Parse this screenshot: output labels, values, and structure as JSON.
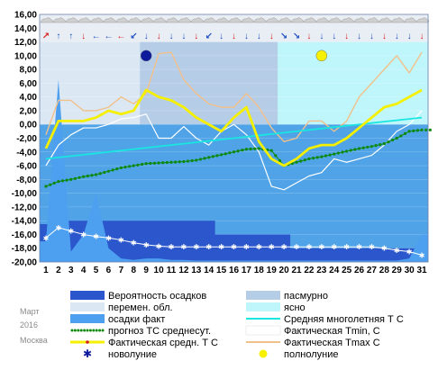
{
  "meta": {
    "month": "Март",
    "year": "2016",
    "city": "Москва"
  },
  "colors": {
    "background": "#ffffff",
    "plot_bg": "#4fa3e6",
    "cloudy": "#b6cde8",
    "partly": "#dbe8f4",
    "clear": "#bff6fb",
    "precip_prob": "#2c57cc",
    "precip_fact": "#4da0f0",
    "norm": "#19e6e0",
    "forecast": "#0d8a0d",
    "fact_mean": "#f5ef00",
    "tmin": "#ffffff",
    "tmax": "#f2c08a",
    "new_moon": "#0d1a9c",
    "full_moon": "#f7f000"
  },
  "chart_data": {
    "type": "line",
    "x": [
      1,
      2,
      3,
      4,
      5,
      6,
      7,
      8,
      9,
      10,
      11,
      12,
      13,
      14,
      15,
      16,
      17,
      18,
      19,
      20,
      21,
      22,
      23,
      24,
      25,
      26,
      27,
      28,
      29,
      30,
      31
    ],
    "ylim": [
      -20,
      16
    ],
    "yticks": [
      "16,00",
      "14,00",
      "12,00",
      "10,00",
      "8,00",
      "6,00",
      "4,00",
      "2,00",
      "0,00",
      "-2,00",
      "-4,00",
      "-6,00",
      "-8,00",
      "-10,00",
      "-12,00",
      "-14,00",
      "-16,00",
      "-18,00",
      "-20,00"
    ],
    "xticks": [
      "1",
      "2",
      "3",
      "4",
      "5",
      "6",
      "7",
      "8",
      "9",
      "10",
      "11",
      "12",
      "13",
      "14",
      "15",
      "16",
      "17",
      "18",
      "19",
      "20",
      "21",
      "22",
      "23",
      "24",
      "25",
      "26",
      "27",
      "28",
      "29",
      "30",
      "31"
    ],
    "sky_state": [
      "partly",
      "partly",
      "partly",
      "partly",
      "partly",
      "partly",
      "partly",
      "partly",
      "cloudy",
      "cloudy",
      "cloudy",
      "cloudy",
      "cloudy",
      "cloudy",
      "cloudy",
      "cloudy",
      "cloudy",
      "cloudy",
      "cloudy",
      "clear",
      "clear",
      "clear",
      "clear",
      "clear",
      "clear",
      "clear",
      "clear",
      "clear",
      "clear",
      "clear",
      "clear"
    ],
    "series": [
      {
        "name": "Вероятность осадков",
        "kind": "area",
        "values": [
          -14.5,
          -12,
          -14,
          -14,
          -14,
          -14,
          -14,
          -14,
          -14,
          -14,
          -14,
          -14,
          -14,
          -14,
          -16,
          -16,
          -16,
          -16,
          -16,
          -16,
          -18,
          -18,
          -18,
          -18,
          -18,
          -18,
          -18,
          -18,
          -18,
          -18,
          -18
        ]
      },
      {
        "name": "осадки факт",
        "kind": "area",
        "values": [
          -17,
          6.5,
          -18.5,
          -16,
          -10,
          -18,
          -19.5,
          -19.7,
          -19.5,
          -19.5,
          -19.7,
          -19.7,
          -19.8,
          -19.8,
          -19.8,
          -19.8,
          -19.8,
          -19.8,
          -19.8,
          -19.8,
          -19.8,
          -19.8,
          -19.8,
          -19.8,
          -19.8,
          -19.8,
          -19.8,
          -19.8,
          -19.8,
          -19.5,
          -16
        ]
      },
      {
        "name": "Средняя многолетняя Т С",
        "kind": "line",
        "values": [
          -5,
          -4.8,
          -4.6,
          -4.4,
          -4.2,
          -4,
          -3.8,
          -3.6,
          -3.4,
          -3.2,
          -3,
          -2.8,
          -2.6,
          -2.4,
          -2.2,
          -2,
          -1.8,
          -1.6,
          -1.4,
          -1.2,
          -1,
          -0.8,
          -0.6,
          -0.4,
          -0.2,
          0,
          0.2,
          0.4,
          0.6,
          0.8,
          1
        ]
      },
      {
        "name": "прогноз ТС среднесут.",
        "kind": "dotted",
        "values": [
          -9,
          -8.3,
          -8,
          -7.6,
          -7.3,
          -6.8,
          -6.3,
          -6,
          -5.7,
          -5.6,
          -5.5,
          -5.4,
          -5.2,
          -4.8,
          -4.4,
          -4,
          -3.6,
          -3.5,
          -3.8,
          -6,
          -5.5,
          -5,
          -4.7,
          -4.3,
          -3.9,
          -3.5,
          -3.2,
          -2.8,
          -2,
          -1,
          -0.8
        ]
      },
      {
        "name": "Фактическая Tmin, C",
        "kind": "line",
        "values": [
          -6,
          -3,
          -1.5,
          -0.5,
          -0.5,
          0,
          0.8,
          1,
          1.5,
          -2,
          -2,
          -0.3,
          -2,
          -3,
          -1,
          0,
          -1.5,
          -4,
          -9,
          -9.5,
          -8.5,
          -7.5,
          -7,
          -5,
          -5.5,
          -5,
          -4.5,
          -3,
          -1,
          0,
          2
        ]
      },
      {
        "name": "Фактическая Tmax C",
        "kind": "line",
        "values": [
          -1.5,
          3.5,
          3.5,
          2,
          2,
          2.5,
          4,
          3,
          4.5,
          10.3,
          10.5,
          6.5,
          4.5,
          3,
          2.5,
          2.5,
          4.5,
          2.5,
          -0.5,
          -2.5,
          -2,
          0.5,
          0.5,
          -1,
          0.5,
          4,
          6,
          8,
          10,
          7.5,
          10.5
        ]
      },
      {
        "name": "Фактическая средн. Т С",
        "kind": "line",
        "values": [
          -3.5,
          0.5,
          0.5,
          0.5,
          1,
          2,
          1.5,
          2,
          5,
          4,
          3.5,
          2.5,
          1,
          0,
          -1,
          1,
          2.5,
          -2.5,
          -5,
          -6,
          -5,
          -3.5,
          -3,
          -3,
          -2,
          -0.5,
          1,
          2.5,
          3,
          4,
          5
        ]
      }
    ],
    "moon": [
      {
        "name": "новолуние",
        "day": 9,
        "y": 10
      },
      {
        "name": "полнолуние",
        "day": 23,
        "y": 10
      }
    ]
  },
  "legend": [
    {
      "label": "Вероятность осадков",
      "swatch": "rect",
      "color": "#2c57cc"
    },
    {
      "label": "пасмурно",
      "swatch": "rect",
      "color": "#b6cde8"
    },
    {
      "label": "перемен. обл.",
      "swatch": "rect",
      "color": "#dbe8f4"
    },
    {
      "label": "ясно",
      "swatch": "rect",
      "color": "#bff6fb"
    },
    {
      "label": "осадки факт",
      "swatch": "rect",
      "color": "#4da0f0"
    },
    {
      "label": "Средняя многолетняя Т С",
      "swatch": "line",
      "color": "#19e6e0"
    },
    {
      "label": "прогноз ТС среднесут.",
      "swatch": "dots",
      "color": "#0d8a0d"
    },
    {
      "label": "Фактическая Tmin, C",
      "swatch": "line",
      "color": "#ffffff"
    },
    {
      "label": "Фактическая средн. Т С",
      "swatch": "yline",
      "color": "#f5ef00"
    },
    {
      "label": "Фактическая Tmax C",
      "swatch": "line",
      "color": "#f2c08a"
    },
    {
      "label": "новолуние",
      "swatch": "star",
      "color": "#0d1a9c"
    },
    {
      "label": "полнолуние",
      "swatch": "circle",
      "color": "#f7f000"
    }
  ]
}
